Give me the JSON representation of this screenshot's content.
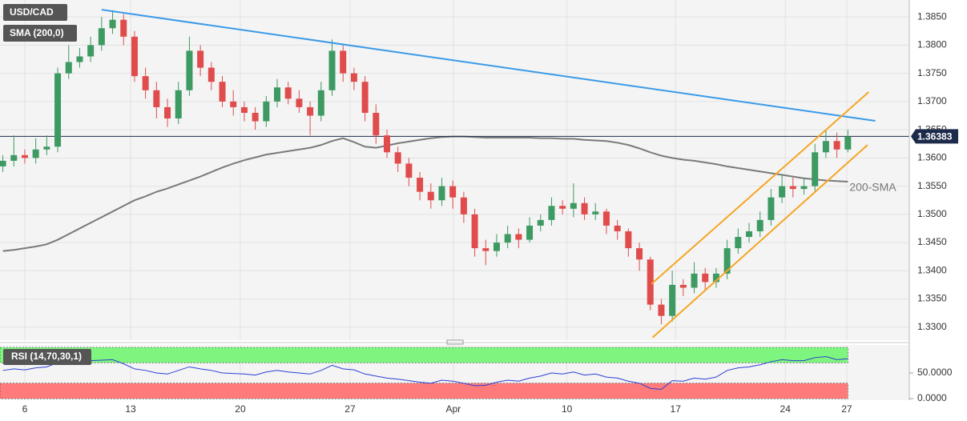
{
  "chart_data": [
    {
      "type": "candlestick",
      "title": "USD/CAD",
      "indicator": "SMA (200,0)",
      "x": [
        -2,
        -1,
        0,
        1,
        2,
        3,
        4,
        5,
        6,
        7,
        8,
        9,
        10,
        11,
        12,
        13,
        14,
        15,
        16,
        17,
        18,
        19,
        20,
        21,
        22,
        23,
        24,
        25,
        26,
        27,
        28,
        29,
        30,
        31,
        32,
        33,
        34,
        35,
        36,
        37,
        38,
        39,
        40,
        41,
        42,
        43,
        44,
        45,
        46,
        47,
        48,
        49,
        50,
        51,
        52,
        53,
        54,
        55,
        56,
        57,
        58,
        59,
        60,
        61,
        62,
        63,
        64,
        65,
        66,
        67,
        68,
        69,
        70,
        71,
        72,
        73,
        74,
        75
      ],
      "open": [
        1.3585,
        1.3595,
        1.3605,
        1.36,
        1.3615,
        1.362,
        1.375,
        1.377,
        1.378,
        1.38,
        1.383,
        1.3845,
        1.3815,
        1.3745,
        1.372,
        1.369,
        1.367,
        1.372,
        1.379,
        1.376,
        1.3735,
        1.37,
        1.369,
        1.368,
        1.3665,
        1.37,
        1.3725,
        1.3705,
        1.369,
        1.3675,
        1.372,
        1.379,
        1.375,
        1.3735,
        1.368,
        1.364,
        1.361,
        1.359,
        1.3565,
        1.354,
        1.3525,
        1.355,
        1.353,
        1.35,
        1.344,
        1.3435,
        1.345,
        1.3465,
        1.3455,
        1.348,
        1.349,
        1.3515,
        1.351,
        1.352,
        1.35,
        1.3505,
        1.348,
        1.347,
        1.344,
        1.342,
        1.334,
        1.332,
        1.3375,
        1.337,
        1.3395,
        1.338,
        1.3395,
        1.344,
        1.346,
        1.347,
        1.349,
        1.353,
        1.355,
        1.3545,
        1.355,
        1.361,
        1.363,
        1.3615
      ],
      "high": [
        1.3605,
        1.364,
        1.3615,
        1.3635,
        1.364,
        1.376,
        1.38,
        1.3795,
        1.3815,
        1.385,
        1.3862,
        1.3855,
        1.3825,
        1.376,
        1.3735,
        1.3705,
        1.3735,
        1.3815,
        1.38,
        1.377,
        1.3745,
        1.372,
        1.37,
        1.369,
        1.371,
        1.374,
        1.3735,
        1.372,
        1.37,
        1.3735,
        1.381,
        1.38,
        1.376,
        1.3745,
        1.3695,
        1.365,
        1.362,
        1.36,
        1.3575,
        1.3555,
        1.3565,
        1.356,
        1.354,
        1.351,
        1.3455,
        1.3465,
        1.348,
        1.3475,
        1.3495,
        1.35,
        1.353,
        1.3525,
        1.3555,
        1.353,
        1.352,
        1.351,
        1.349,
        1.3475,
        1.345,
        1.3425,
        1.335,
        1.34,
        1.3385,
        1.3415,
        1.3405,
        1.3405,
        1.3455,
        1.3475,
        1.3485,
        1.3505,
        1.3545,
        1.357,
        1.3565,
        1.3565,
        1.3625,
        1.365,
        1.3645,
        1.365
      ],
      "low": [
        1.3575,
        1.3585,
        1.359,
        1.359,
        1.3605,
        1.361,
        1.374,
        1.376,
        1.377,
        1.379,
        1.382,
        1.38,
        1.3735,
        1.3705,
        1.367,
        1.3655,
        1.366,
        1.371,
        1.3745,
        1.372,
        1.369,
        1.3675,
        1.3665,
        1.365,
        1.3655,
        1.369,
        1.3695,
        1.368,
        1.364,
        1.3665,
        1.371,
        1.3735,
        1.372,
        1.3665,
        1.3625,
        1.36,
        1.3575,
        1.355,
        1.3525,
        1.351,
        1.3515,
        1.351,
        1.3485,
        1.3425,
        1.341,
        1.3425,
        1.344,
        1.344,
        1.345,
        1.347,
        1.348,
        1.35,
        1.3495,
        1.349,
        1.349,
        1.3465,
        1.3455,
        1.3425,
        1.34,
        1.333,
        1.3305,
        1.331,
        1.3355,
        1.336,
        1.3365,
        1.337,
        1.3385,
        1.343,
        1.345,
        1.346,
        1.348,
        1.352,
        1.353,
        1.3535,
        1.354,
        1.36,
        1.36,
        1.361
      ],
      "close": [
        1.3595,
        1.3605,
        1.36,
        1.3615,
        1.362,
        1.375,
        1.377,
        1.378,
        1.38,
        1.383,
        1.3845,
        1.3815,
        1.3745,
        1.372,
        1.369,
        1.367,
        1.372,
        1.379,
        1.376,
        1.3735,
        1.37,
        1.369,
        1.368,
        1.3665,
        1.37,
        1.3725,
        1.3705,
        1.369,
        1.3675,
        1.372,
        1.379,
        1.375,
        1.3735,
        1.368,
        1.364,
        1.361,
        1.359,
        1.3565,
        1.354,
        1.3525,
        1.355,
        1.353,
        1.35,
        1.344,
        1.3435,
        1.345,
        1.3465,
        1.3455,
        1.348,
        1.349,
        1.3515,
        1.351,
        1.352,
        1.35,
        1.3505,
        1.348,
        1.347,
        1.344,
        1.342,
        1.334,
        1.332,
        1.3375,
        1.337,
        1.3395,
        1.338,
        1.3395,
        1.344,
        1.346,
        1.347,
        1.349,
        1.353,
        1.355,
        1.3545,
        1.355,
        1.361,
        1.363,
        1.3615,
        1.3638
      ],
      "up_color": "#3d9a62",
      "down_color": "#e04c4c",
      "sma": {
        "name": "200-SMA",
        "color": "#7a7a7a",
        "values": [
          1.3435,
          1.3437,
          1.344,
          1.3443,
          1.3447,
          1.3455,
          1.3465,
          1.3475,
          1.3485,
          1.3495,
          1.3505,
          1.3515,
          1.3525,
          1.3532,
          1.354,
          1.3546,
          1.3553,
          1.356,
          1.3567,
          1.3575,
          1.3583,
          1.359,
          1.3596,
          1.3601,
          1.3606,
          1.3609,
          1.3612,
          1.3615,
          1.3618,
          1.3623,
          1.363,
          1.3635,
          1.3628,
          1.362,
          1.3618,
          1.3622,
          1.3626,
          1.3629,
          1.3632,
          1.3635,
          1.3637,
          1.3638,
          1.3638,
          1.3637,
          1.3636,
          1.3636,
          1.3636,
          1.3636,
          1.3636,
          1.3635,
          1.3635,
          1.3634,
          1.3634,
          1.3632,
          1.3631,
          1.363,
          1.3627,
          1.3623,
          1.3617,
          1.361,
          1.3604,
          1.36,
          1.3597,
          1.3595,
          1.3592,
          1.3589,
          1.3585,
          1.3582,
          1.3579,
          1.3576,
          1.3573,
          1.357,
          1.3567,
          1.3564,
          1.3562,
          1.356,
          1.3559,
          1.3558
        ]
      },
      "trendlines": [
        {
          "color": "#3a9ae8",
          "x": [
            7.0,
            77.5
          ],
          "y": [
            1.38628,
            1.36657
          ]
        },
        {
          "color": "#f5a623",
          "x": [
            57.1,
            76.9
          ],
          "y": [
            1.33766,
            1.37168
          ]
        },
        {
          "color": "#f5a623",
          "x": [
            57.2,
            76.8
          ],
          "y": [
            1.32816,
            1.36232
          ]
        }
      ],
      "last_price": 1.36383,
      "xlim": [
        -2.26,
        80.6
      ],
      "xticks": [
        {
          "value": 0,
          "label": "6"
        },
        {
          "value": 9.64,
          "label": "13"
        },
        {
          "value": 19.64,
          "label": "20"
        },
        {
          "value": 29.64,
          "label": "27"
        },
        {
          "value": 39.05,
          "label": "Apr"
        },
        {
          "value": 49.4,
          "label": "10"
        },
        {
          "value": 59.3,
          "label": "17"
        },
        {
          "value": 69.3,
          "label": "24"
        },
        {
          "value": 74.9,
          "label": "27"
        }
      ],
      "ylim": [
        1.3277,
        1.388
      ],
      "yticks": [
        {
          "value": 1.33,
          "label": "1.3300"
        },
        {
          "value": 1.335,
          "label": "1.3350"
        },
        {
          "value": 1.34,
          "label": "1.3400"
        },
        {
          "value": 1.345,
          "label": "1.3450"
        },
        {
          "value": 1.35,
          "label": "1.3500"
        },
        {
          "value": 1.355,
          "label": "1.3550"
        },
        {
          "value": 1.36,
          "label": "1.3600"
        },
        {
          "value": 1.365,
          "label": "1.3650"
        },
        {
          "value": 1.37,
          "label": "1.3700"
        },
        {
          "value": 1.375,
          "label": "1.3750"
        },
        {
          "value": 1.38,
          "label": "1.3800"
        },
        {
          "value": 1.385,
          "label": "1.3850"
        }
      ],
      "grid": true
    },
    {
      "type": "line",
      "title": "RSI (14,70,30,1)",
      "x": [
        -2,
        -1,
        0,
        1,
        2,
        3,
        4,
        5,
        6,
        7,
        8,
        9,
        10,
        11,
        12,
        13,
        14,
        15,
        16,
        17,
        18,
        19,
        20,
        21,
        22,
        23,
        24,
        25,
        26,
        27,
        28,
        29,
        30,
        31,
        32,
        33,
        34,
        35,
        36,
        37,
        38,
        39,
        40,
        41,
        42,
        43,
        44,
        45,
        46,
        47,
        48,
        49,
        50,
        51,
        52,
        53,
        54,
        55,
        56,
        57,
        58,
        59,
        60,
        61,
        62,
        63,
        64,
        65,
        66,
        67,
        68,
        69,
        70,
        71,
        72,
        73,
        74,
        75
      ],
      "values": [
        55,
        58,
        56,
        60,
        62,
        70,
        72,
        72,
        74,
        75,
        76,
        68,
        58,
        55,
        50,
        48,
        55,
        62,
        58,
        55,
        50,
        49,
        48,
        46,
        52,
        55,
        52,
        50,
        48,
        55,
        65,
        58,
        56,
        48,
        44,
        40,
        38,
        35,
        32,
        30,
        36,
        34,
        30,
        25,
        26,
        32,
        36,
        34,
        40,
        44,
        50,
        48,
        52,
        46,
        48,
        42,
        40,
        34,
        30,
        20,
        18,
        35,
        34,
        40,
        38,
        42,
        55,
        60,
        62,
        66,
        72,
        76,
        74,
        74,
        80,
        82,
        76,
        78
      ],
      "color": "#2b3fd6",
      "bands": [
        {
          "from": 70,
          "to": 100,
          "color": "#7ef57e"
        },
        {
          "from": 0,
          "to": 30,
          "color": "#ff7b7b"
        }
      ],
      "xlim": [
        -2.26,
        80.6
      ],
      "ylim": [
        -3.1,
        104.7
      ],
      "yticks": [
        {
          "value": 0,
          "label": "0.0000"
        },
        {
          "value": 50,
          "label": "50.0000"
        }
      ]
    }
  ]
}
